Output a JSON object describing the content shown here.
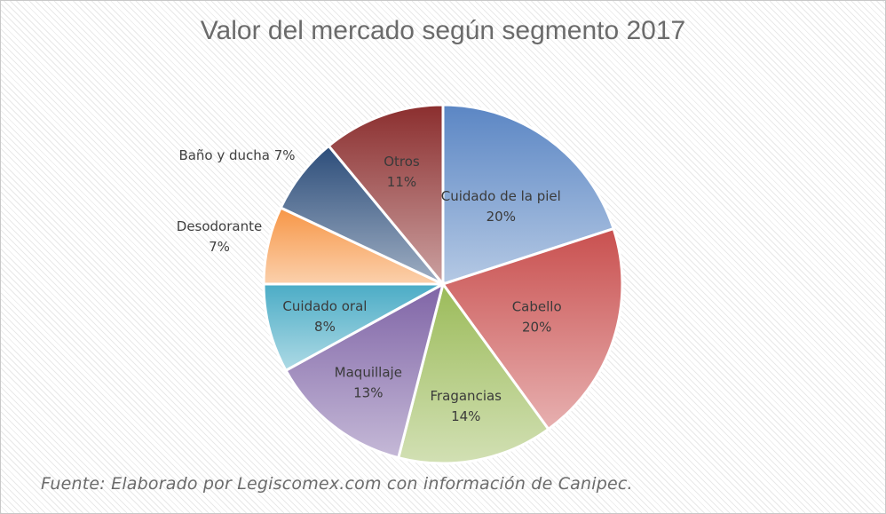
{
  "chart_data": {
    "type": "pie",
    "title": "Valor del mercado según segmento 2017",
    "source": "Fuente: Elaborado por Legiscomex.com con información de Canipec.",
    "slices": [
      {
        "name": "Cuidado de la piel",
        "value": 20,
        "label": "20%",
        "color": "#5b86c4",
        "outside": false
      },
      {
        "name": "Cabello",
        "value": 20,
        "label": "20%",
        "color": "#c9504f",
        "outside": false
      },
      {
        "name": "Fragancias",
        "value": 14,
        "label": "14%",
        "color": "#9bbb59",
        "outside": false
      },
      {
        "name": "Maquillaje",
        "value": 13,
        "label": "13%",
        "color": "#7f64a6",
        "outside": false
      },
      {
        "name": "Cuidado oral",
        "value": 8,
        "label": "8%",
        "color": "#4bacc6",
        "outside": false
      },
      {
        "name": "Desodorante",
        "value": 7,
        "label": "7%",
        "color": "#f79646",
        "outside": true
      },
      {
        "name": "Baño y ducha",
        "value": 7,
        "label": "7%",
        "color": "#2c4d7a",
        "outside": true
      },
      {
        "name": "Otros",
        "value": 11,
        "label": "11%",
        "color": "#8b2e2e",
        "outside": false
      }
    ]
  }
}
